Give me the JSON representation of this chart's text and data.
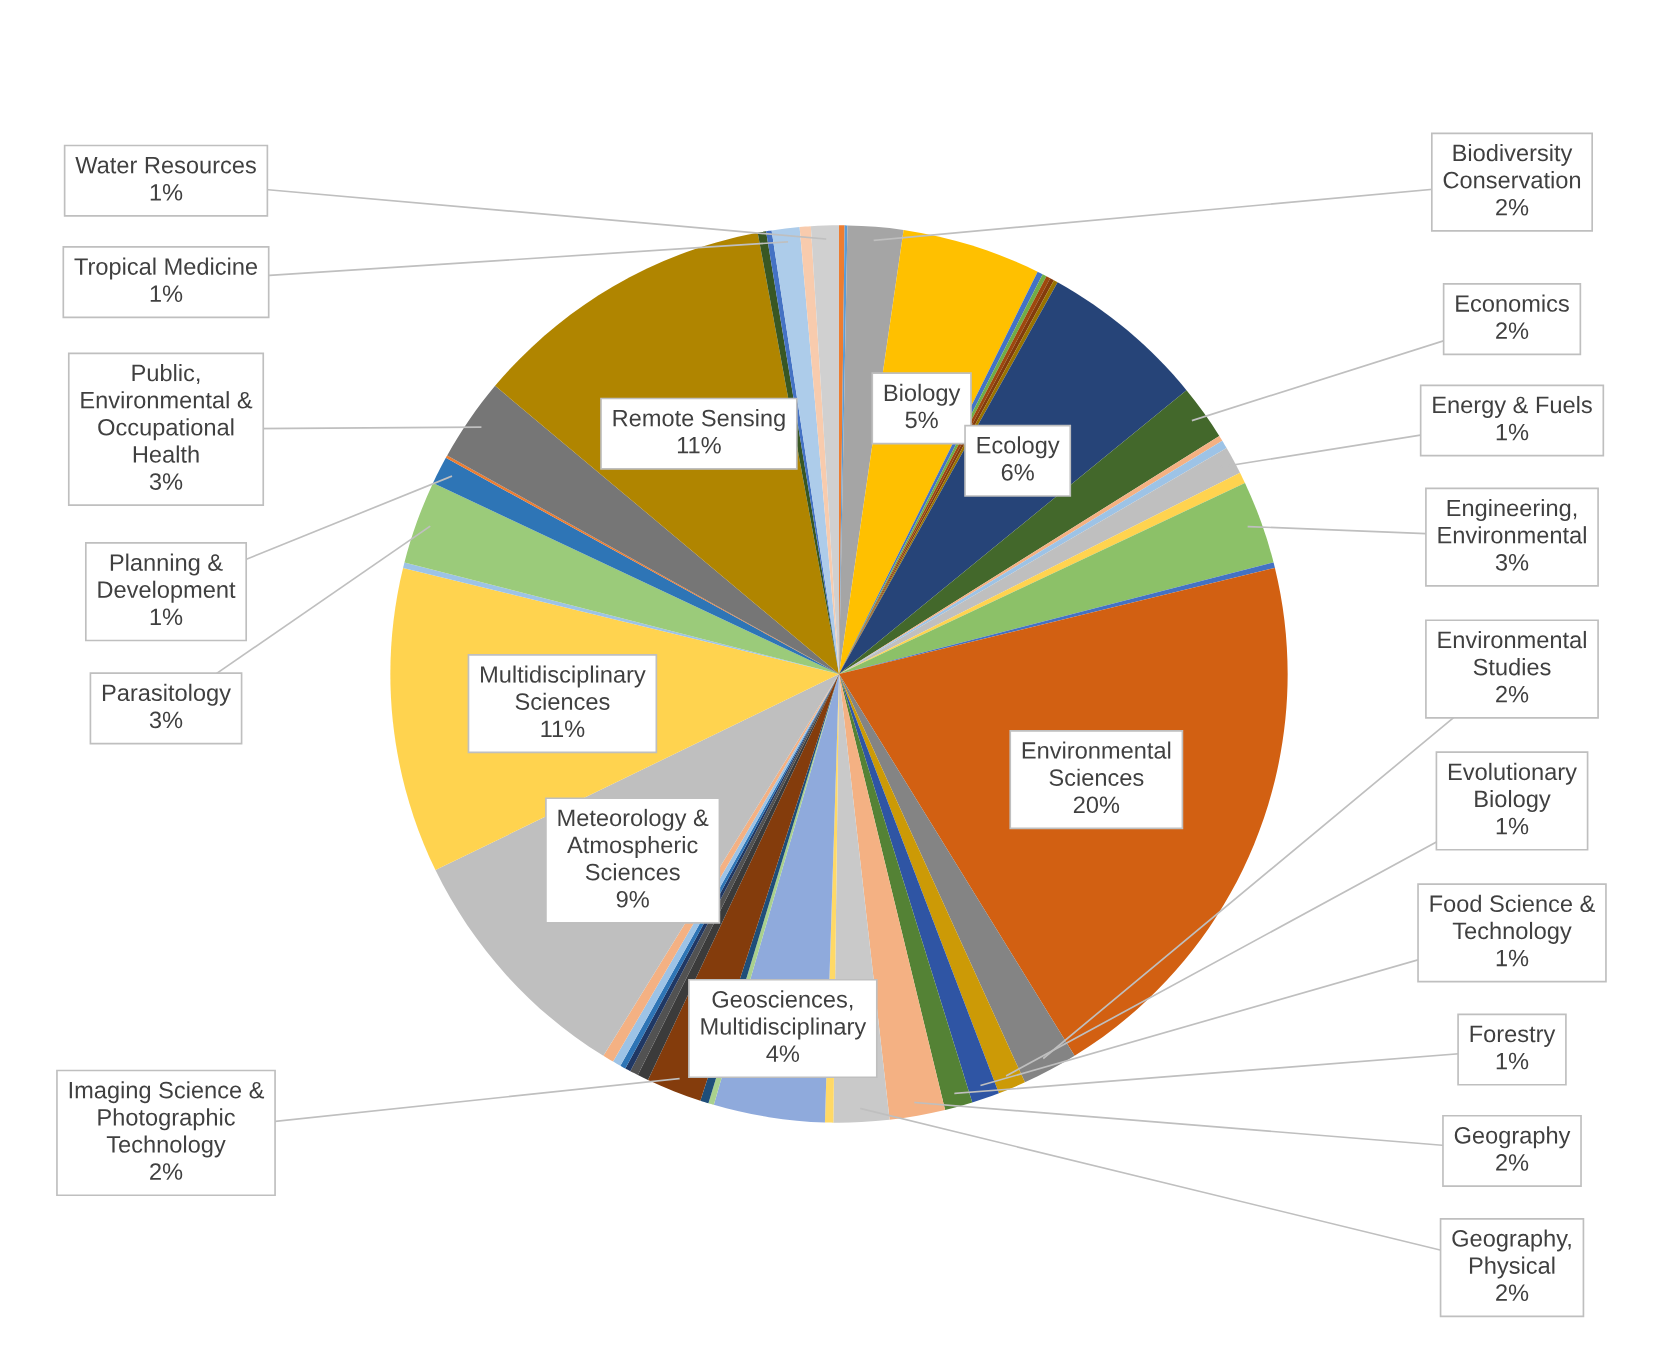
{
  "chart_data": {
    "type": "pie",
    "categories": [
      null,
      null,
      "Biodiversity Conservation",
      "Biology",
      null,
      null,
      null,
      null,
      null,
      "Ecology",
      "Economics",
      null,
      null,
      "Energy & Fuels",
      null,
      "Engineering, Environmental",
      null,
      "Environmental Sciences",
      "Environmental Studies",
      "Evolutionary Biology",
      "Food Science & Technology",
      "Forestry",
      "Geography",
      "Geography, Physical",
      null,
      "Geosciences, Multidisciplinary",
      null,
      null,
      "Imaging Science & Photographic Technology",
      null,
      null,
      null,
      null,
      null,
      null,
      "Meteorology & Atmospheric Sciences",
      "Multidisciplinary Sciences",
      null,
      "Parasitology",
      "Planning & Development",
      null,
      "Public, Environmental & Occupational Health",
      "Remote Sensing",
      null,
      null,
      "Tropical Medicine",
      null,
      "Water Resources"
    ],
    "values": [
      0.2,
      0.1,
      2,
      5,
      0.2,
      0.15,
      0.15,
      0.15,
      0.15,
      6,
      2,
      0.2,
      0.3,
      1,
      0.4,
      3,
      0.2,
      20,
      2,
      1,
      1,
      1,
      2,
      2,
      0.3,
      4,
      0.2,
      0.3,
      2,
      0.4,
      0.3,
      0.2,
      0.2,
      0.3,
      0.4,
      9,
      11,
      0.2,
      3,
      1,
      0.1,
      3,
      11,
      0.3,
      0.2,
      1,
      0.4,
      1
    ],
    "value_labels": [
      null,
      null,
      "2%",
      "5%",
      null,
      null,
      null,
      null,
      null,
      "6%",
      "2%",
      null,
      null,
      "1%",
      null,
      "3%",
      null,
      "20%",
      "2%",
      "1%",
      "1%",
      "1%",
      "2%",
      "2%",
      null,
      "4%",
      null,
      null,
      "2%",
      null,
      null,
      null,
      null,
      null,
      null,
      "9%",
      "11%",
      null,
      "3%",
      "1%",
      null,
      "3%",
      "11%",
      null,
      null,
      "1%",
      null,
      "1%"
    ],
    "colors": [
      "#ED7D31",
      "#5B9BD5",
      "#A5A5A5",
      "#FFC000",
      "#4472C4",
      "#70AD47",
      "#9E480E",
      "#843C0C",
      "#997300",
      "#264478",
      "#43682B",
      "#F4B183",
      "#9DC3E6",
      "#BFBFBF",
      "#FFD34F",
      "#8CC168",
      "#4472C4",
      "#D26012",
      "#848484",
      "#CC9A06",
      "#2F55A4",
      "#548235",
      "#F4B183",
      "#C9C9C9",
      "#FFD966",
      "#8FAADC",
      "#A9D18E",
      "#1F4E79",
      "#843C0C",
      "#3B3B3B",
      "#525252",
      "#203864",
      "#2E75B6",
      "#9DC3E6",
      "#F4B183",
      "#BFBFBF",
      "#FFD34F",
      "#9DC3E6",
      "#9BCB7A",
      "#2E75B6",
      "#ED7D31",
      "#767676",
      "#B08500",
      "#385723",
      "#4472C4",
      "#ADCCEA",
      "#F8CBAD",
      "#D0D0D0"
    ],
    "legend": false
  }
}
